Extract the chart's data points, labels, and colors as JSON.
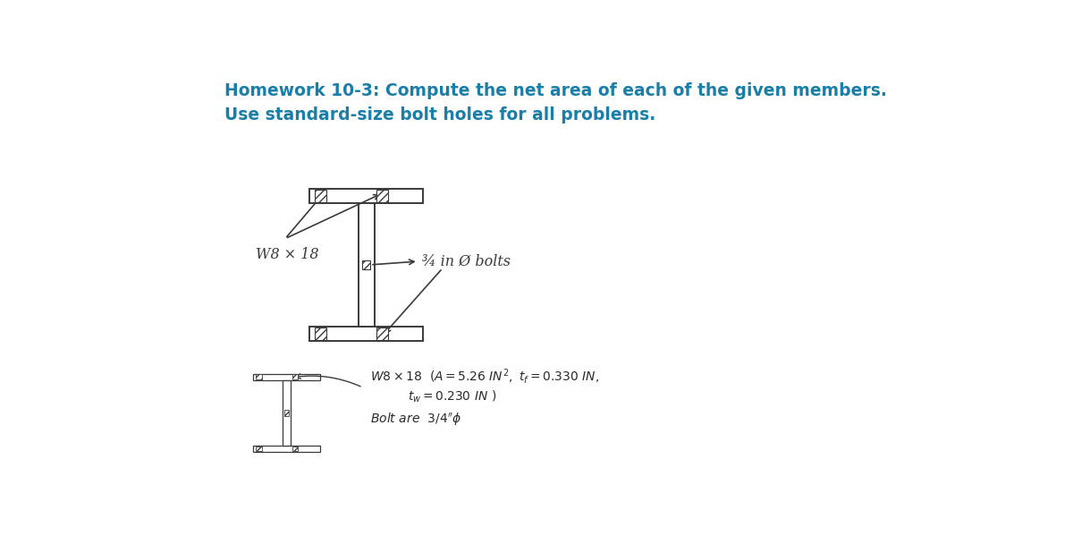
{
  "title_line1": "Homework 10-3: Compute the net area of each of the given members.",
  "title_line2": "Use standard-size bolt holes for all problems.",
  "title_color": "#1a7fa8",
  "title_fontsize": 13.5,
  "title_fontweight": "bold",
  "bg_color": "#ffffff",
  "label_w8x18": "W8 × 18",
  "label_bolts": "¾ in Ø bolts",
  "drawing_color": "#3a3a3a"
}
